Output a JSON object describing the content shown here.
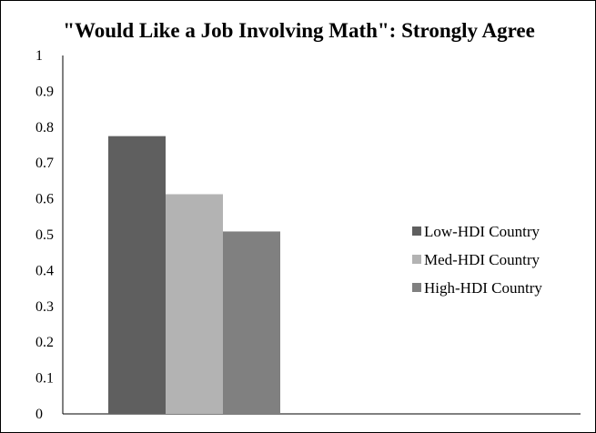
{
  "chart_data": {
    "type": "bar",
    "title": "\"Would Like a Job Involving Math\": Strongly Agree",
    "xlabel": "",
    "ylabel": "",
    "ylim": [
      0,
      1
    ],
    "yticks": [
      "0",
      "0.1",
      "0.2",
      "0.3",
      "0.4",
      "0.5",
      "0.6",
      "0.7",
      "0.8",
      "0.9",
      "1"
    ],
    "categories": [
      ""
    ],
    "series": [
      {
        "name": "Low-HDI Country",
        "values": [
          0.775
        ],
        "color": "#5f5f5f"
      },
      {
        "name": "Med-HDI Country",
        "values": [
          0.613
        ],
        "color": "#b3b3b3"
      },
      {
        "name": "High-HDI Country",
        "values": [
          0.509
        ],
        "color": "#808080"
      }
    ],
    "grid": false,
    "legend": "right"
  }
}
